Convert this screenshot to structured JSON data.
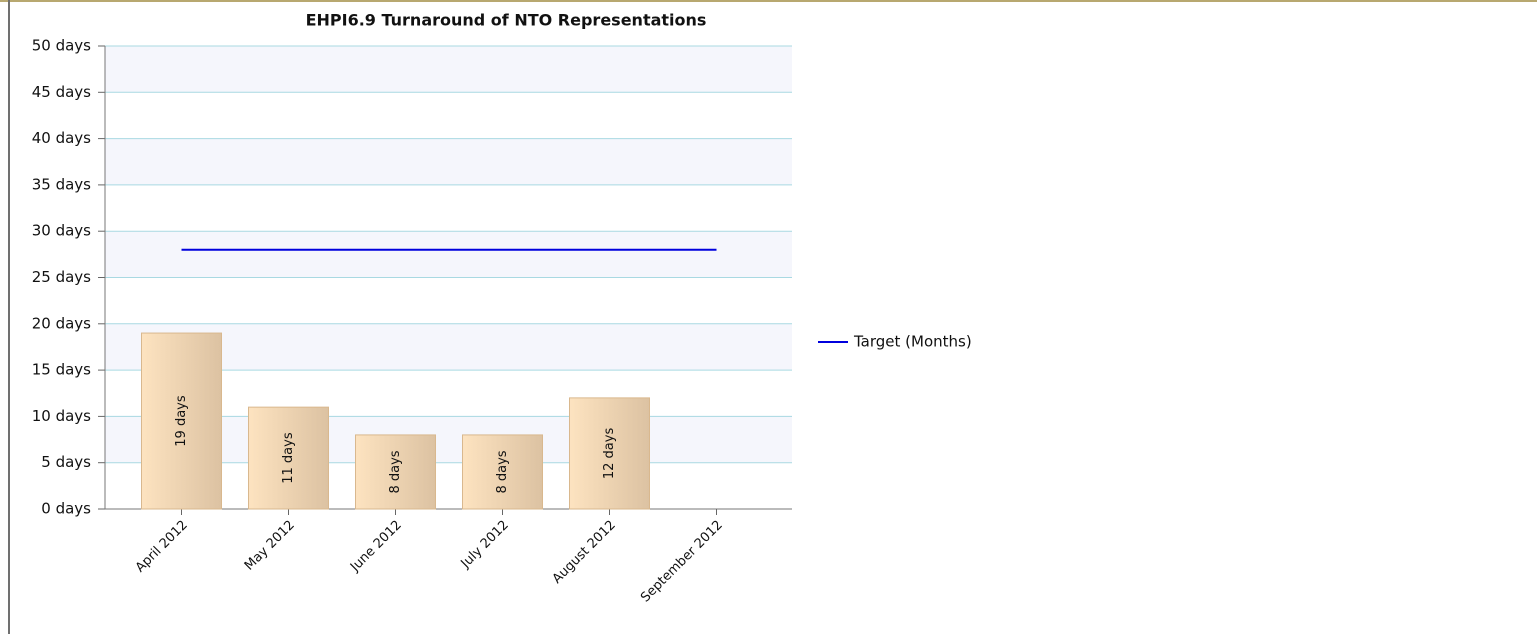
{
  "chart_data": {
    "type": "bar",
    "title": "EHPI6.9 Turnaround of NTO Representations",
    "categories": [
      "April 2012",
      "May 2012",
      "June 2012",
      "July 2012",
      "August 2012",
      "September 2012"
    ],
    "series": [
      {
        "type": "bar",
        "color": "#f2d4ae",
        "values": [
          19,
          11,
          8,
          8,
          12,
          null
        ],
        "value_labels": [
          "19 days",
          "11 days",
          "8 days",
          "8 days",
          "12 days",
          null
        ]
      },
      {
        "type": "line",
        "name": "Target (Months)",
        "color": "#0000dd",
        "values": [
          28,
          28,
          28,
          28,
          28,
          28
        ]
      }
    ],
    "ylim": [
      0,
      50
    ],
    "yticks": [
      {
        "value": 0,
        "label": "0 days"
      },
      {
        "value": 5,
        "label": "5 days"
      },
      {
        "value": 10,
        "label": "10 days"
      },
      {
        "value": 15,
        "label": "15 days"
      },
      {
        "value": 20,
        "label": "20 days"
      },
      {
        "value": 25,
        "label": "25 days"
      },
      {
        "value": 30,
        "label": "30 days"
      },
      {
        "value": 35,
        "label": "35 days"
      },
      {
        "value": 40,
        "label": "40 days"
      },
      {
        "value": 45,
        "label": "45 days"
      },
      {
        "value": 50,
        "label": "50 days"
      }
    ],
    "grid": true,
    "legend": "right"
  }
}
